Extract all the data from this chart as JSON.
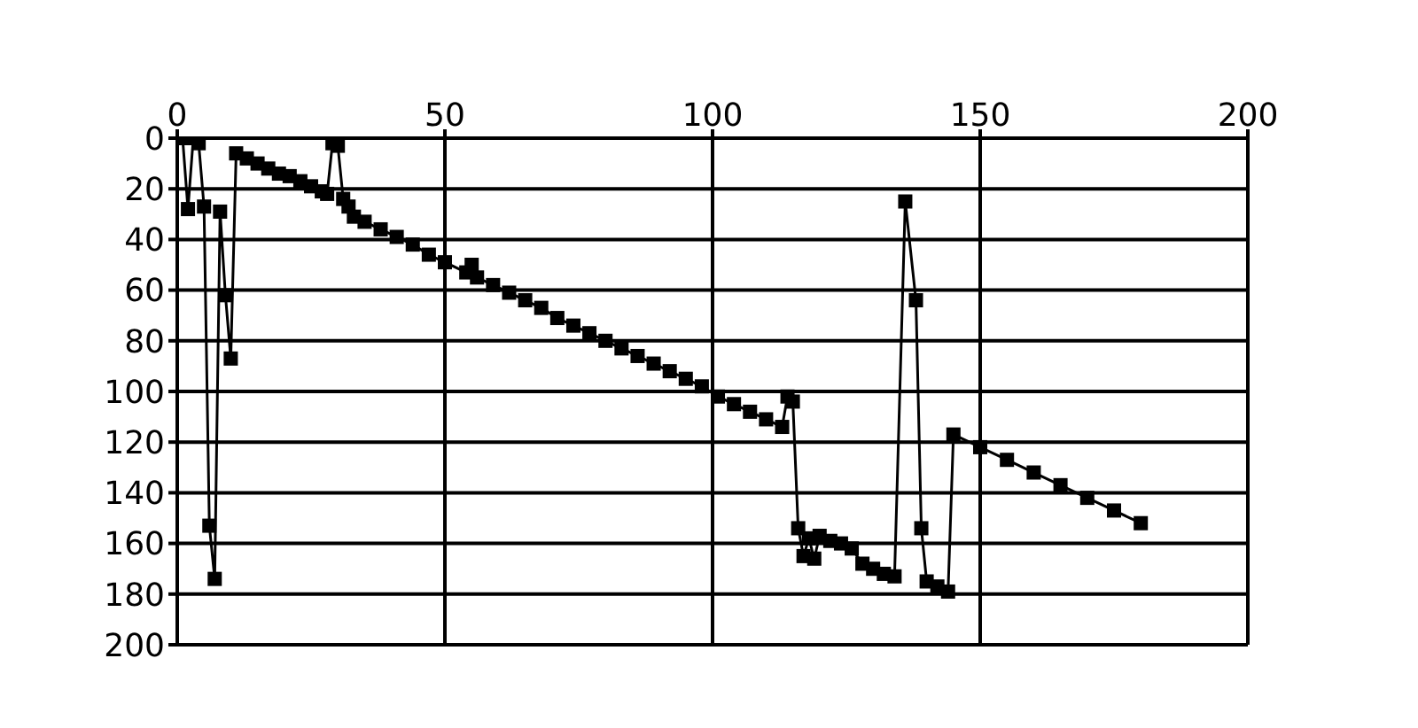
{
  "chart_data": {
    "type": "line",
    "marker": "square",
    "line_style": "solid",
    "grid": true,
    "x": [
      1,
      2,
      3,
      4,
      5,
      6,
      7,
      8,
      9,
      10,
      11,
      13,
      15,
      17,
      19,
      21,
      23,
      25,
      27,
      28,
      29,
      30,
      31,
      32,
      33,
      35,
      38,
      41,
      44,
      47,
      50,
      54,
      55,
      56,
      59,
      62,
      65,
      68,
      71,
      74,
      77,
      80,
      83,
      86,
      89,
      92,
      95,
      98,
      101,
      104,
      107,
      110,
      113,
      114,
      115,
      116,
      117,
      118,
      119,
      120,
      122,
      124,
      126,
      128,
      130,
      132,
      134,
      136,
      138,
      139,
      140,
      142,
      144,
      145,
      150,
      155,
      160,
      165,
      170,
      175,
      180
    ],
    "series": [
      {
        "color": "#000000",
        "values": [
          0,
          28,
          0,
          2,
          27,
          153,
          174,
          29,
          62,
          87,
          6,
          8,
          10,
          12,
          14,
          15,
          17,
          19,
          21,
          22,
          2,
          3,
          24,
          27,
          31,
          33,
          36,
          39,
          42,
          46,
          49,
          53,
          50,
          55,
          58,
          61,
          64,
          67,
          71,
          74,
          77,
          80,
          83,
          86,
          89,
          92,
          95,
          98,
          102,
          105,
          108,
          111,
          114,
          102,
          104,
          154,
          165,
          158,
          166,
          157,
          159,
          160,
          162,
          168,
          170,
          172,
          173,
          25,
          64,
          154,
          175,
          177,
          179,
          117,
          122,
          127,
          132,
          137,
          142,
          147,
          152
        ]
      }
    ],
    "xlim": [
      0,
      200
    ],
    "xticks": [
      0,
      50,
      100,
      150,
      200
    ],
    "ylim": [
      200,
      0
    ],
    "yticks": [
      0,
      20,
      40,
      60,
      80,
      100,
      120,
      140,
      160,
      180,
      200
    ]
  }
}
